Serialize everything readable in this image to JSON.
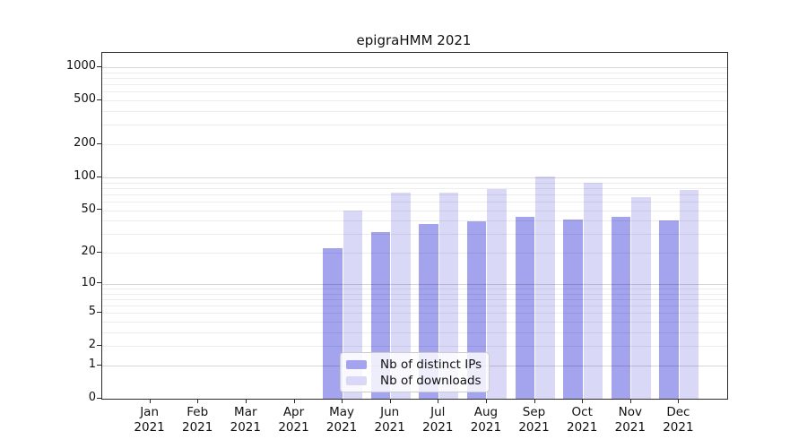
{
  "title": "epigraHMM 2021",
  "chart_data": {
    "type": "bar",
    "title": "epigraHMM 2021",
    "categories": [
      "Jan 2021",
      "Feb 2021",
      "Mar 2021",
      "Apr 2021",
      "May 2021",
      "Jun 2021",
      "Jul 2021",
      "Aug 2021",
      "Sep 2021",
      "Oct 2021",
      "Nov 2021",
      "Dec 2021"
    ],
    "x_tick_months": [
      "Jan",
      "Feb",
      "Mar",
      "Apr",
      "May",
      "Jun",
      "Jul",
      "Aug",
      "Sep",
      "Oct",
      "Nov",
      "Dec"
    ],
    "x_tick_year": "2021",
    "series": [
      {
        "name": "Nb of distinct IPs",
        "color": "#a3a3ee",
        "values": [
          0,
          0,
          0,
          0,
          22,
          31,
          37,
          39,
          43,
          41,
          43,
          40
        ]
      },
      {
        "name": "Nb of downloads",
        "color": "#d9d9f7",
        "values": [
          0,
          0,
          0,
          0,
          49,
          72,
          72,
          78,
          101,
          88,
          66,
          77
        ]
      }
    ],
    "y_axis": {
      "scale": "log10(value+1)",
      "tick_labels": [
        1000,
        500,
        200,
        100,
        50,
        20,
        10,
        5,
        2,
        1,
        0
      ],
      "major_gridlines": [
        1,
        10,
        100,
        1000
      ],
      "minor_gridlines": [
        2,
        3,
        4,
        5,
        6,
        7,
        8,
        9,
        20,
        30,
        40,
        50,
        60,
        70,
        80,
        90,
        200,
        300,
        400,
        500,
        600,
        700,
        800,
        900
      ],
      "ylim": [
        0,
        1352
      ],
      "grid": true
    },
    "legend": {
      "position": "lower center",
      "entries": [
        "Nb of distinct IPs",
        "Nb of downloads"
      ]
    },
    "xlabel": "",
    "ylabel": ""
  }
}
